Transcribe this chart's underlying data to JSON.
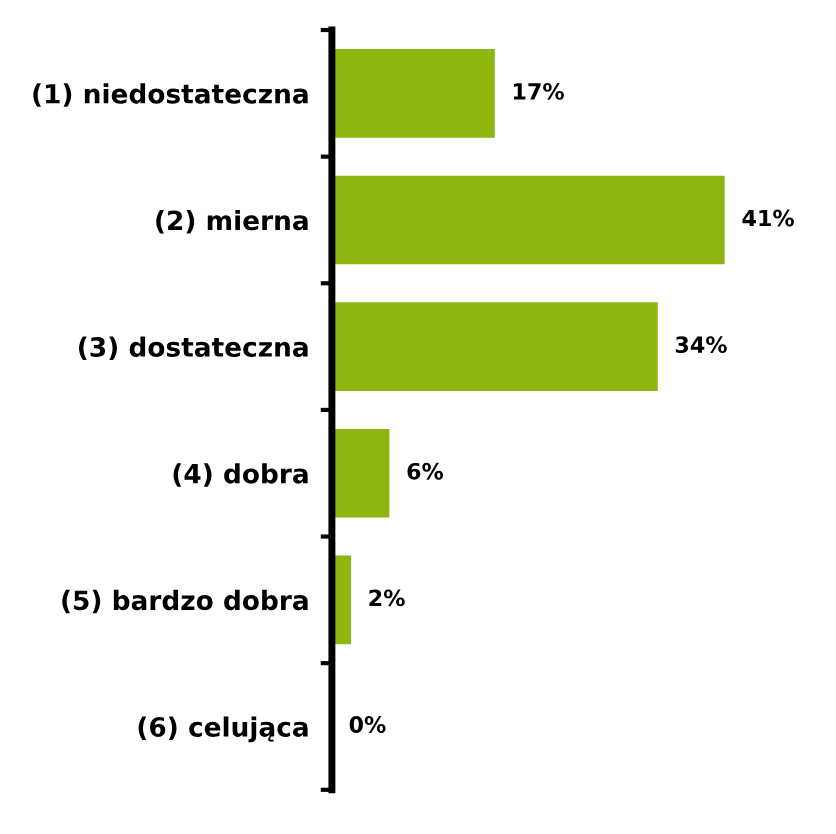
{
  "chart_data": {
    "type": "bar",
    "orientation": "horizontal",
    "categories": [
      "(1) niedostateczna",
      "(2) mierna",
      "(3) dostateczna",
      "(4) dobra",
      "(5) bardzo dobra",
      "(6) celująca"
    ],
    "values": [
      17,
      41,
      34,
      6,
      2,
      0
    ],
    "value_labels": [
      "17%",
      "41%",
      "34%",
      "6%",
      "2%",
      "0%"
    ],
    "color": "#8db70f",
    "grid": false,
    "legend": false
  }
}
